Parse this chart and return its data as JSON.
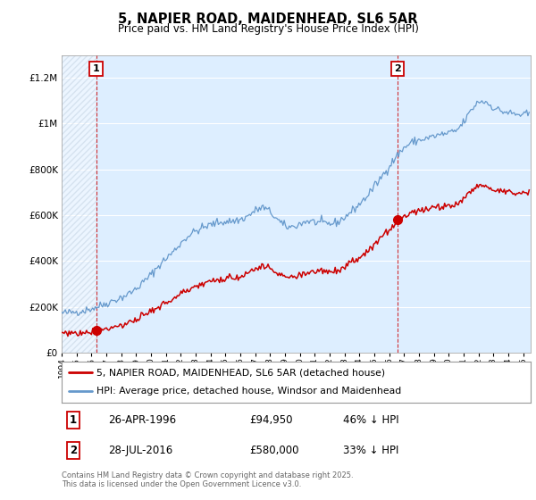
{
  "title": "5, NAPIER ROAD, MAIDENHEAD, SL6 5AR",
  "subtitle": "Price paid vs. HM Land Registry's House Price Index (HPI)",
  "legend_label_red": "5, NAPIER ROAD, MAIDENHEAD, SL6 5AR (detached house)",
  "legend_label_blue": "HPI: Average price, detached house, Windsor and Maidenhead",
  "annotation1_label": "1",
  "annotation1_date": "26-APR-1996",
  "annotation1_price": "£94,950",
  "annotation1_hpi": "46% ↓ HPI",
  "annotation2_label": "2",
  "annotation2_date": "28-JUL-2016",
  "annotation2_price": "£580,000",
  "annotation2_hpi": "33% ↓ HPI",
  "footer": "Contains HM Land Registry data © Crown copyright and database right 2025.\nThis data is licensed under the Open Government Licence v3.0.",
  "transaction1_x": 1996.32,
  "transaction1_y": 94950,
  "transaction2_x": 2016.57,
  "transaction2_y": 580000,
  "ylim_max": 1300000,
  "xlim_min": 1994.0,
  "xlim_max": 2025.5,
  "yticks": [
    0,
    200000,
    400000,
    600000,
    800000,
    1000000,
    1200000
  ],
  "ytick_labels": [
    "£0",
    "£200K",
    "£400K",
    "£600K",
    "£800K",
    "£1M",
    "£1.2M"
  ],
  "bg_color": "#ffffff",
  "plot_bg_color": "#ddeeff",
  "grid_color": "#ffffff",
  "red_color": "#cc0000",
  "blue_color": "#6699cc",
  "marker_box_color": "#cc0000"
}
